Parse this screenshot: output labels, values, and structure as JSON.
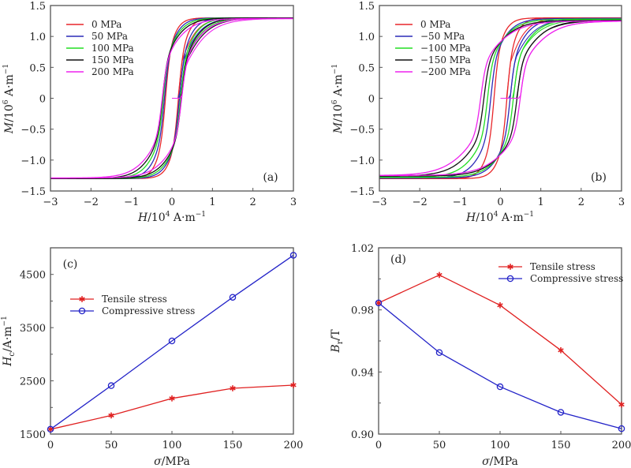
{
  "chart_data": [
    {
      "id": "a",
      "type": "line",
      "panel_label": "(a)",
      "title": "",
      "xlabel": "H/10^4 A·m^-1",
      "ylabel": "M/10^6 A·m^-1",
      "xlim": [
        -3,
        3
      ],
      "ylim": [
        -1.5,
        1.5
      ],
      "xticks": [
        "-3",
        "-2",
        "-1",
        "0",
        "1",
        "2",
        "3"
      ],
      "yticks": [
        "-1.5",
        "-1.0",
        "-0.5",
        "0",
        "0.5",
        "1.0",
        "1.5"
      ],
      "legend_position": "top-left",
      "description": "Hysteresis loops M(H) under tensile stress; each series given by saturation Ms, coercivity Hc (10^4 A/m), and loop slope width w",
      "series": [
        {
          "name": "0 MPa",
          "color": "#e8262a",
          "Ms": 1.3,
          "Hc": 0.16,
          "w": 0.28
        },
        {
          "name": "50 MPa",
          "color": "#2b2bb8",
          "Ms": 1.3,
          "Hc": 0.185,
          "w": 0.36
        },
        {
          "name": "100 MPa",
          "color": "#22dd22",
          "Ms": 1.3,
          "Hc": 0.215,
          "w": 0.44
        },
        {
          "name": "150 MPa",
          "color": "#111111",
          "Ms": 1.3,
          "Hc": 0.235,
          "w": 0.52
        },
        {
          "name": "200 MPa",
          "color": "#ee22ee",
          "Ms": 1.29,
          "Hc": 0.24,
          "w": 0.6
        }
      ]
    },
    {
      "id": "b",
      "type": "line",
      "panel_label": "(b)",
      "title": "",
      "xlabel": "H/10^4 A·m^-1",
      "ylabel": "M/10^6 A·m^-1",
      "xlim": [
        -3,
        3
      ],
      "ylim": [
        -1.5,
        1.5
      ],
      "xticks": [
        "-3",
        "-2",
        "-1",
        "0",
        "1",
        "2",
        "3"
      ],
      "yticks": [
        "-1.5",
        "-1.0",
        "-0.5",
        "0",
        "0.5",
        "1.0",
        "1.5"
      ],
      "legend_position": "top-left",
      "description": "Hysteresis loops M(H) under compressive stress",
      "series": [
        {
          "name": "0 MPa",
          "color": "#e8262a",
          "Ms": 1.3,
          "Hc": 0.16,
          "w": 0.3
        },
        {
          "name": "−50 MPa",
          "color": "#2b2bb8",
          "Ms": 1.29,
          "Hc": 0.24,
          "w": 0.48
        },
        {
          "name": "−100 MPa",
          "color": "#22dd22",
          "Ms": 1.28,
          "Hc": 0.32,
          "w": 0.58
        },
        {
          "name": "−150 MPa",
          "color": "#111111",
          "Ms": 1.26,
          "Hc": 0.41,
          "w": 0.68
        },
        {
          "name": "−200 MPa",
          "color": "#ee22ee",
          "Ms": 1.25,
          "Hc": 0.49,
          "w": 0.78
        }
      ]
    },
    {
      "id": "c",
      "type": "line",
      "panel_label": "(c)",
      "title": "",
      "xlabel": "σ/MPa",
      "ylabel": "Hc/A·m^-1",
      "xlim": [
        0,
        200
      ],
      "ylim": [
        1500,
        5000
      ],
      "xticks": [
        "0",
        "50",
        "100",
        "150",
        "200"
      ],
      "yticks": [
        "1500",
        "2500",
        "3500",
        "4500"
      ],
      "ytick_values": [
        1500,
        2500,
        3500,
        4500
      ],
      "legend_position": "upper-left",
      "x": [
        0,
        50,
        100,
        150,
        200
      ],
      "series": [
        {
          "name": "Tensile stress",
          "color": "#e02020",
          "marker": "asterisk",
          "values": [
            1590,
            1850,
            2170,
            2360,
            2420
          ]
        },
        {
          "name": "Compressive stress",
          "color": "#2323c8",
          "marker": "circle",
          "values": [
            1590,
            2410,
            3250,
            4070,
            4860
          ]
        }
      ]
    },
    {
      "id": "d",
      "type": "line",
      "panel_label": "(d)",
      "title": "",
      "xlabel": "σ/MPa",
      "ylabel": "Br/T",
      "xlim": [
        0,
        200
      ],
      "ylim": [
        0.9,
        1.02
      ],
      "xticks": [
        "0",
        "50",
        "100",
        "150",
        "200"
      ],
      "yticks": [
        "0.90",
        "0.94",
        "0.98",
        "1.02"
      ],
      "ytick_values": [
        0.9,
        0.94,
        0.98,
        1.02
      ],
      "legend_position": "top-right",
      "x": [
        0,
        50,
        100,
        150,
        200
      ],
      "series": [
        {
          "name": "Tensile stress",
          "color": "#e02020",
          "marker": "asterisk",
          "values": [
            0.9845,
            1.0025,
            0.983,
            0.954,
            0.919
          ]
        },
        {
          "name": "Compressive stress",
          "color": "#2323c8",
          "marker": "circle",
          "values": [
            0.9845,
            0.9525,
            0.9305,
            0.914,
            0.9035
          ]
        }
      ]
    }
  ]
}
